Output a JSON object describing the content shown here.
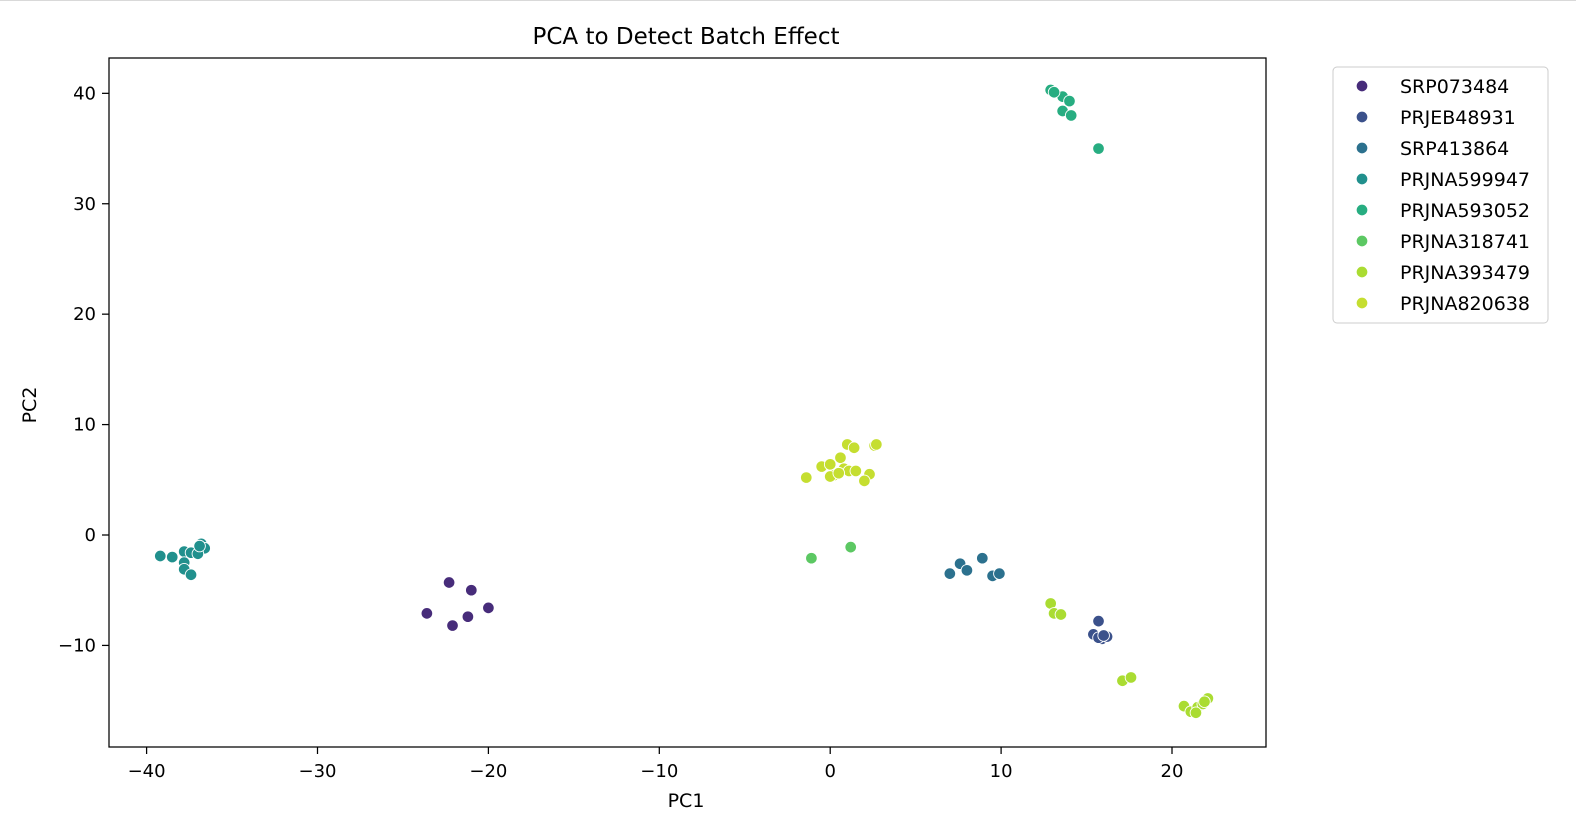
{
  "chart_data": {
    "type": "scatter",
    "title": "PCA to Detect Batch Effect",
    "xlabel": "PC1",
    "ylabel": "PC2",
    "xlim": [
      -42.2,
      25.5
    ],
    "ylim": [
      -19.2,
      43.2
    ],
    "xticks": [
      -40,
      -30,
      -20,
      -10,
      0,
      10,
      20
    ],
    "xtick_labels": [
      "−40",
      "−30",
      "−20",
      "−10",
      "0",
      "10",
      "20"
    ],
    "yticks": [
      -10,
      0,
      10,
      20,
      30,
      40
    ],
    "ytick_labels": [
      "−10",
      "0",
      "10",
      "20",
      "30",
      "40"
    ],
    "grid": false,
    "legend_position": "outside-top-right",
    "series": [
      {
        "name": "SRP073484",
        "color": "#472c7a",
        "points": [
          [
            -22.3,
            -4.3
          ],
          [
            -21.0,
            -5.0
          ],
          [
            -23.6,
            -7.1
          ],
          [
            -22.1,
            -8.2
          ],
          [
            -21.2,
            -7.4
          ],
          [
            -20.0,
            -6.6
          ]
        ]
      },
      {
        "name": "PRJEB48931",
        "color": "#3b518b",
        "points": [
          [
            15.7,
            -7.8
          ],
          [
            15.4,
            -9.0
          ],
          [
            15.9,
            -9.4
          ],
          [
            16.2,
            -9.2
          ],
          [
            15.7,
            -9.3
          ],
          [
            16.0,
            -9.1
          ]
        ]
      },
      {
        "name": "SRP413864",
        "color": "#2c718e",
        "points": [
          [
            7.0,
            -3.5
          ],
          [
            7.6,
            -2.6
          ],
          [
            8.0,
            -3.2
          ],
          [
            8.9,
            -2.1
          ],
          [
            9.5,
            -3.7
          ],
          [
            9.9,
            -3.5
          ]
        ]
      },
      {
        "name": "PRJNA599947",
        "color": "#21908d",
        "points": [
          [
            -39.2,
            -1.9
          ],
          [
            -38.5,
            -2.0
          ],
          [
            -37.8,
            -1.5
          ],
          [
            -37.4,
            -1.6
          ],
          [
            -36.8,
            -0.8
          ],
          [
            -36.6,
            -1.2
          ],
          [
            -37.0,
            -1.7
          ],
          [
            -37.8,
            -2.5
          ],
          [
            -37.8,
            -3.1
          ],
          [
            -37.4,
            -3.6
          ],
          [
            -36.9,
            -1.0
          ]
        ]
      },
      {
        "name": "PRJNA593052",
        "color": "#27ad81",
        "points": [
          [
            12.9,
            40.3
          ],
          [
            13.6,
            39.7
          ],
          [
            14.0,
            39.3
          ],
          [
            13.6,
            38.4
          ],
          [
            14.1,
            38.0
          ],
          [
            15.7,
            35.0
          ],
          [
            13.1,
            40.1
          ]
        ]
      },
      {
        "name": "PRJNA318741",
        "color": "#5cc863",
        "points": [
          [
            -1.1,
            -2.1
          ],
          [
            1.2,
            -1.1
          ]
        ]
      },
      {
        "name": "PRJNA393479",
        "color": "#aadc32",
        "points": [
          [
            12.9,
            -6.2
          ],
          [
            13.1,
            -7.1
          ],
          [
            13.5,
            -7.2
          ],
          [
            17.1,
            -13.2
          ],
          [
            17.6,
            -12.9
          ],
          [
            20.7,
            -15.5
          ],
          [
            21.1,
            -16.0
          ],
          [
            21.5,
            -15.6
          ],
          [
            21.8,
            -15.3
          ],
          [
            22.1,
            -14.8
          ],
          [
            21.4,
            -16.1
          ],
          [
            21.9,
            -15.1
          ]
        ]
      },
      {
        "name": "PRJNA820638",
        "color": "#c5de30",
        "points": [
          [
            -1.4,
            5.2
          ],
          [
            -0.5,
            6.2
          ],
          [
            0.0,
            6.4
          ],
          [
            0.6,
            7.0
          ],
          [
            1.0,
            8.2
          ],
          [
            1.4,
            7.9
          ],
          [
            2.6,
            8.1
          ],
          [
            2.7,
            8.2
          ],
          [
            0.8,
            6.0
          ],
          [
            1.1,
            5.8
          ],
          [
            1.5,
            5.8
          ],
          [
            2.3,
            5.5
          ],
          [
            2.0,
            4.9
          ],
          [
            0.2,
            5.4
          ],
          [
            0.0,
            5.3
          ],
          [
            0.5,
            5.6
          ]
        ]
      }
    ]
  }
}
